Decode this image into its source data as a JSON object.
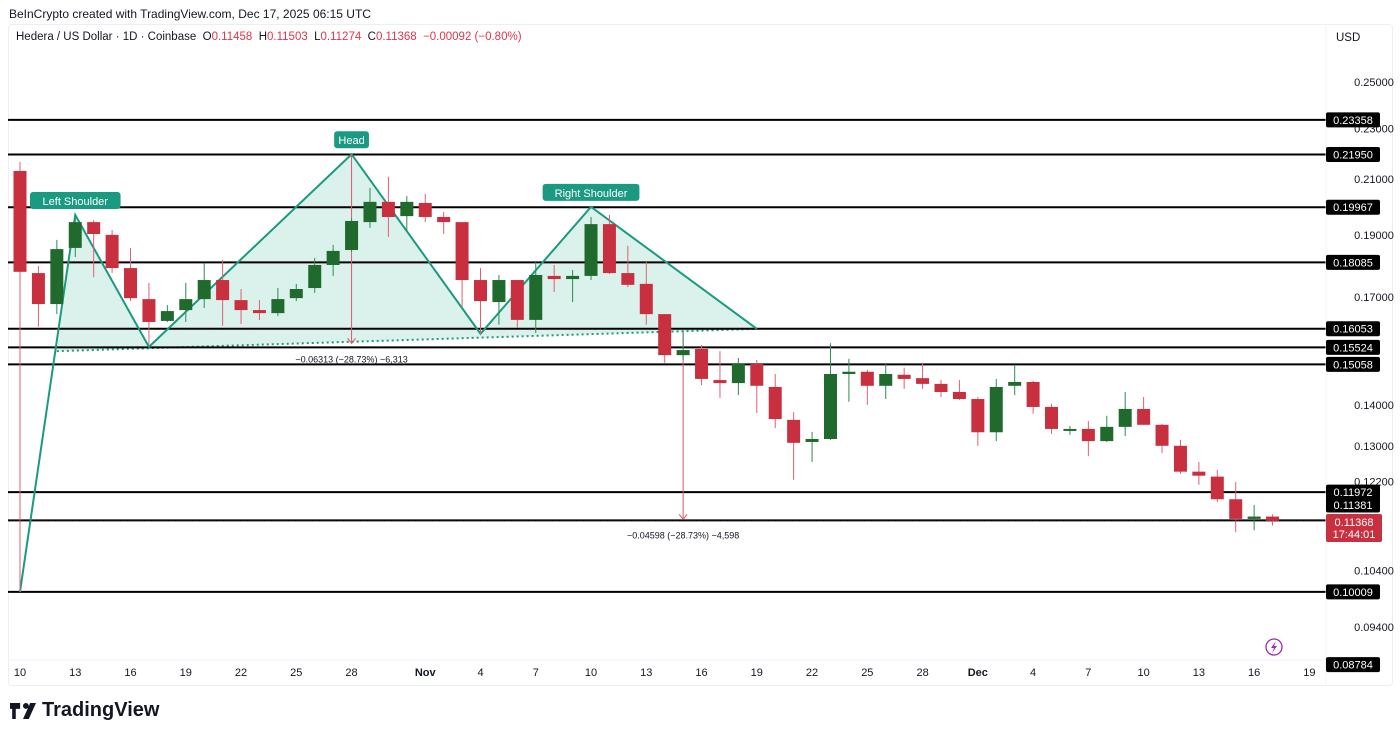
{
  "credit": "BeInCrypto created with TradingView.com, Dec 17, 2025 06:15 UTC",
  "legend": {
    "symbol": "Hedera / US Dollar · 1D · Coinbase",
    "open_label": "O",
    "open": "0.11458",
    "high_label": "H",
    "high": "0.11503",
    "low_label": "L",
    "low": "0.11274",
    "close_label": "C",
    "close": "0.11368",
    "change": "−0.00092 (−0.80%)"
  },
  "currency": "USD",
  "logo_text": "TradingView",
  "colors": {
    "up": "#1f6a2c",
    "down": "#c8303f",
    "pattern": "#1a9a80",
    "pattern_fill": "#d7efe9",
    "level": "#000000",
    "measure": "#e0566a",
    "alert": "#9c27b0"
  },
  "chart_data": {
    "type": "candlestick",
    "y_scale": "log",
    "ylim": [
      0.0855,
      0.262
    ],
    "xlim": [
      "2025-10-10",
      "2025-12-19"
    ],
    "grid": false,
    "x_ticks": [
      {
        "date": "2025-10-10",
        "label": "10"
      },
      {
        "date": "2025-10-13",
        "label": "13"
      },
      {
        "date": "2025-10-16",
        "label": "16"
      },
      {
        "date": "2025-10-19",
        "label": "19"
      },
      {
        "date": "2025-10-22",
        "label": "22"
      },
      {
        "date": "2025-10-25",
        "label": "25"
      },
      {
        "date": "2025-10-28",
        "label": "28"
      },
      {
        "date": "2025-11-01",
        "label": "Nov"
      },
      {
        "date": "2025-11-04",
        "label": "4"
      },
      {
        "date": "2025-11-07",
        "label": "7"
      },
      {
        "date": "2025-11-10",
        "label": "10"
      },
      {
        "date": "2025-11-13",
        "label": "13"
      },
      {
        "date": "2025-11-16",
        "label": "16"
      },
      {
        "date": "2025-11-19",
        "label": "19"
      },
      {
        "date": "2025-11-22",
        "label": "22"
      },
      {
        "date": "2025-11-25",
        "label": "25"
      },
      {
        "date": "2025-11-28",
        "label": "28"
      },
      {
        "date": "2025-12-01",
        "label": "Dec"
      },
      {
        "date": "2025-12-04",
        "label": "4"
      },
      {
        "date": "2025-12-07",
        "label": "7"
      },
      {
        "date": "2025-12-10",
        "label": "10"
      },
      {
        "date": "2025-12-13",
        "label": "13"
      },
      {
        "date": "2025-12-16",
        "label": "16"
      },
      {
        "date": "2025-12-19",
        "label": "19"
      }
    ],
    "y_ticks": [
      "0.25000",
      "0.23000",
      "0.21000",
      "0.19000",
      "0.17000",
      "0.14000",
      "0.13000",
      "0.12200",
      "0.10400",
      "0.09400"
    ],
    "candles_columns": [
      "date",
      "open",
      "high",
      "low",
      "close"
    ],
    "candles": [
      [
        "2025-10-10",
        0.2131,
        0.2166,
        0.1001,
        0.1778
      ],
      [
        "2025-10-11",
        0.1774,
        0.1797,
        0.1611,
        0.1678
      ],
      [
        "2025-10-12",
        0.1678,
        0.1883,
        0.1648,
        0.1852
      ],
      [
        "2025-10-13",
        0.1856,
        0.1969,
        0.1826,
        0.1944
      ],
      [
        "2025-10-14",
        0.1944,
        0.1951,
        0.1761,
        0.1903
      ],
      [
        "2025-10-15",
        0.19,
        0.1917,
        0.1774,
        0.179
      ],
      [
        "2025-10-16",
        0.179,
        0.1856,
        0.1687,
        0.1696
      ],
      [
        "2025-10-17",
        0.1693,
        0.1743,
        0.1561,
        0.1625
      ],
      [
        "2025-10-18",
        0.1628,
        0.1675,
        0.1625,
        0.1657
      ],
      [
        "2025-10-19",
        0.166,
        0.1743,
        0.1625,
        0.1693
      ],
      [
        "2025-10-20",
        0.1693,
        0.1806,
        0.1666,
        0.1752
      ],
      [
        "2025-10-21",
        0.1752,
        0.1816,
        0.1614,
        0.169
      ],
      [
        "2025-10-22",
        0.169,
        0.1724,
        0.1619,
        0.166
      ],
      [
        "2025-10-23",
        0.166,
        0.169,
        0.1631,
        0.1651
      ],
      [
        "2025-10-24",
        0.1651,
        0.1727,
        0.1642,
        0.1693
      ],
      [
        "2025-10-25",
        0.1696,
        0.174,
        0.1687,
        0.1724
      ],
      [
        "2025-10-26",
        0.1727,
        0.1823,
        0.1712,
        0.18
      ],
      [
        "2025-10-27",
        0.18,
        0.1866,
        0.1765,
        0.1846
      ],
      [
        "2025-10-28",
        0.1849,
        0.1958,
        0.1843,
        0.1948
      ],
      [
        "2025-10-29",
        0.1944,
        0.2067,
        0.1924,
        0.2016
      ],
      [
        "2025-10-30",
        0.2016,
        0.2109,
        0.1893,
        0.1962
      ],
      [
        "2025-10-31",
        0.1965,
        0.2037,
        0.191,
        0.2016
      ],
      [
        "2025-11-01",
        0.2012,
        0.2045,
        0.1944,
        0.1962
      ],
      [
        "2025-11-02",
        0.1962,
        0.198,
        0.1903,
        0.1944
      ],
      [
        "2025-11-03",
        0.1944,
        0.1944,
        0.1669,
        0.1752
      ],
      [
        "2025-11-04",
        0.1752,
        0.179,
        0.1587,
        0.1687
      ],
      [
        "2025-11-05",
        0.1684,
        0.1768,
        0.1617,
        0.1752
      ],
      [
        "2025-11-06",
        0.1752,
        0.1752,
        0.1608,
        0.1631
      ],
      [
        "2025-11-07",
        0.1631,
        0.181,
        0.1593,
        0.1768
      ],
      [
        "2025-11-08",
        0.1765,
        0.18,
        0.1715,
        0.1755
      ],
      [
        "2025-11-09",
        0.1755,
        0.1784,
        0.1684,
        0.1765
      ],
      [
        "2025-11-10",
        0.1765,
        0.1962,
        0.1752,
        0.1937
      ],
      [
        "2025-11-11",
        0.1937,
        0.1969,
        0.1771,
        0.1774
      ],
      [
        "2025-11-12",
        0.1774,
        0.1863,
        0.173,
        0.1737
      ],
      [
        "2025-11-13",
        0.174,
        0.181,
        0.1617,
        0.1648
      ],
      [
        "2025-11-14",
        0.1648,
        0.1648,
        0.151,
        0.1531
      ],
      [
        "2025-11-15",
        0.1531,
        0.1599,
        0.1518,
        0.1545
      ],
      [
        "2025-11-16",
        0.1548,
        0.1559,
        0.1451,
        0.1467
      ],
      [
        "2025-11-17",
        0.1464,
        0.1542,
        0.1418,
        0.1456
      ],
      [
        "2025-11-18",
        0.1456,
        0.1523,
        0.1425,
        0.1507
      ],
      [
        "2025-11-19",
        0.1507,
        0.1518,
        0.138,
        0.1449
      ],
      [
        "2025-11-20",
        0.1446,
        0.148,
        0.1343,
        0.1365
      ],
      [
        "2025-11-21",
        0.1363,
        0.1382,
        0.1224,
        0.1308
      ],
      [
        "2025-11-22",
        0.131,
        0.1334,
        0.1264,
        0.1317
      ],
      [
        "2025-11-23",
        0.1317,
        0.1564,
        0.1315,
        0.148
      ],
      [
        "2025-11-24",
        0.148,
        0.1521,
        0.1408,
        0.1486
      ],
      [
        "2025-11-25",
        0.1486,
        0.1491,
        0.14,
        0.1449
      ],
      [
        "2025-11-26",
        0.1449,
        0.1507,
        0.1415,
        0.148
      ],
      [
        "2025-11-27",
        0.1478,
        0.1497,
        0.1441,
        0.1467
      ],
      [
        "2025-11-28",
        0.1469,
        0.151,
        0.1441,
        0.1454
      ],
      [
        "2025-11-29",
        0.1454,
        0.1464,
        0.142,
        0.1433
      ],
      [
        "2025-11-30",
        0.1433,
        0.1464,
        0.1413,
        0.1415
      ],
      [
        "2025-12-01",
        0.1415,
        0.142,
        0.1301,
        0.1333
      ],
      [
        "2025-12-02",
        0.1333,
        0.1467,
        0.1312,
        0.1446
      ],
      [
        "2025-12-03",
        0.1449,
        0.1505,
        0.1425,
        0.1459
      ],
      [
        "2025-12-04",
        0.1459,
        0.1462,
        0.1378,
        0.1395
      ],
      [
        "2025-12-05",
        0.1395,
        0.1403,
        0.1329,
        0.1341
      ],
      [
        "2025-12-06",
        0.1338,
        0.1348,
        0.1327,
        0.1341
      ],
      [
        "2025-12-07",
        0.1341,
        0.136,
        0.1277,
        0.1312
      ],
      [
        "2025-12-08",
        0.1312,
        0.1373,
        0.131,
        0.1346
      ],
      [
        "2025-12-09",
        0.1346,
        0.1433,
        0.1324,
        0.139
      ],
      [
        "2025-12-10",
        0.139,
        0.142,
        0.1351,
        0.1351
      ],
      [
        "2025-12-11",
        0.1351,
        0.1353,
        0.1284,
        0.1301
      ],
      [
        "2025-12-12",
        0.1301,
        0.1315,
        0.1237,
        0.1242
      ],
      [
        "2025-12-13",
        0.1242,
        0.1264,
        0.1213,
        0.1233
      ],
      [
        "2025-12-14",
        0.1231,
        0.1246,
        0.1176,
        0.1182
      ],
      [
        "2025-12-15",
        0.1182,
        0.1219,
        0.1114,
        0.1141
      ],
      [
        "2025-12-16",
        0.1141,
        0.117,
        0.1118,
        0.11458
      ],
      [
        "2025-12-17",
        0.11458,
        0.11503,
        0.11274,
        0.11368
      ]
    ],
    "levels": [
      "0.23358",
      "0.21950",
      "0.19967",
      "0.18085",
      "0.16053",
      "0.15524",
      "0.15058",
      "0.11972",
      "0.11381",
      "0.10009"
    ],
    "extra_price_labels": [
      "0.08784"
    ],
    "current_price": {
      "value": "0.11368",
      "countdown": "17:44:01"
    },
    "pattern": {
      "points": [
        [
          "2025-10-10",
          0.1001
        ],
        [
          "2025-10-13",
          0.1969
        ],
        [
          "2025-10-17",
          0.1554
        ],
        [
          "2025-10-28",
          0.2196
        ],
        [
          "2025-11-04",
          0.1591
        ],
        [
          "2025-11-10",
          0.1998
        ],
        [
          "2025-11-19",
          0.1605
        ]
      ],
      "neckline": [
        [
          "2025-10-12",
          0.1542
        ],
        [
          "2025-11-19",
          0.1605
        ]
      ],
      "labels": [
        {
          "text": "Left Shoulder",
          "date": "2025-10-13",
          "price": 0.1969
        },
        {
          "text": "Head",
          "date": "2025-10-28",
          "price": 0.2196
        },
        {
          "text": "Right Shoulder",
          "date": "2025-11-10",
          "price": 0.1998
        }
      ]
    },
    "measures": [
      {
        "date": "2025-10-28",
        "from": 0.2195,
        "to": 0.15637,
        "label": "−0.06313 (−28.73%) −6,313"
      },
      {
        "date": "2025-11-15",
        "from": 0.16,
        "to": 0.11402,
        "label": "−0.04598 (−28.73%) −4,598"
      }
    ]
  }
}
